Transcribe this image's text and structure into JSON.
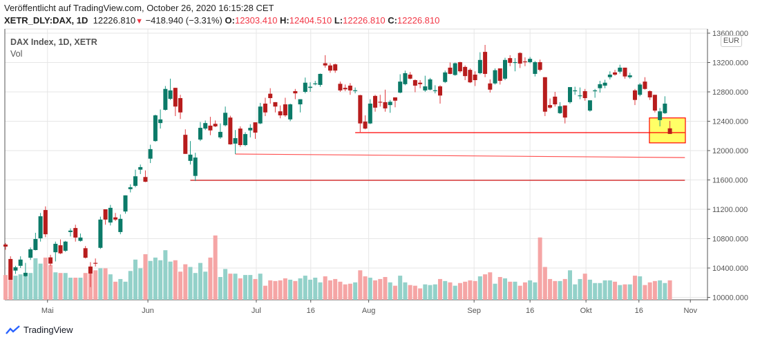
{
  "header": {
    "published": "Veröffentlicht auf TradingView.com, October 26, 2020 16:15:28 CET",
    "symbol": "XETR_DLY:DAX, 1D",
    "last": "12226.810",
    "change": "−418.940 (−3.31%)",
    "o_label": "O:",
    "o": "12303.410",
    "h_label": "H:",
    "h": "12404.510",
    "l_label": "L:",
    "l": "12226.810",
    "c_label": "C:",
    "c": "12226.810"
  },
  "legend": {
    "title": "DAX Index, 1D, XETR",
    "vol": "Vol"
  },
  "currency": "EUR",
  "footer": {
    "brand": "TradingView"
  },
  "colors": {
    "up": "#0b7a68",
    "down": "#b71c1c",
    "vol_up": "#93d1c9",
    "vol_down": "#f5a5a5",
    "line": "#ff0000",
    "box_fill": "#ffff66"
  },
  "chart_data": {
    "type": "candlestick",
    "title": "DAX Index, 1D, XETR",
    "ylim": [
      10000,
      13600
    ],
    "yticks": [
      "13600.000",
      "13200.000",
      "12800.000",
      "12400.000",
      "12000.000",
      "11600.000",
      "11200.000",
      "10800.000",
      "10400.000",
      "10000.000"
    ],
    "ytick_values": [
      13600,
      13200,
      12800,
      12400,
      12000,
      11600,
      11200,
      10800,
      10400,
      10000
    ],
    "xticks": [
      {
        "label": "Mai",
        "bar": 8.4
      },
      {
        "label": "Jun",
        "bar": 28.5
      },
      {
        "label": "Jul",
        "bar": 50.2
      },
      {
        "label": "16",
        "bar": 61.1
      },
      {
        "label": "Aug",
        "bar": 72.7
      },
      {
        "label": "Sep",
        "bar": 93.8
      },
      {
        "label": "16",
        "bar": 105
      },
      {
        "label": "Okt",
        "bar": 116.2
      },
      {
        "label": "16",
        "bar": 126.8
      },
      {
        "label": "Nov",
        "bar": 137.1
      }
    ],
    "volume_units": "relative",
    "bars_ohlcv": [
      [
        10720,
        10740,
        10650,
        10692,
        37
      ],
      [
        10523,
        10560,
        10240,
        10240,
        45
      ],
      [
        10365,
        10430,
        10320,
        10410,
        36
      ],
      [
        10430,
        10560,
        10400,
        10515,
        38
      ],
      [
        10290,
        10470,
        10280,
        10335,
        40
      ],
      [
        10540,
        10680,
        10510,
        10655,
        40
      ],
      [
        10645,
        10880,
        10640,
        10795,
        62
      ],
      [
        10805,
        11150,
        10760,
        11105,
        54
      ],
      [
        11190,
        11240,
        10820,
        10860,
        63
      ],
      [
        10545,
        10580,
        10430,
        10460,
        52
      ],
      [
        10615,
        10760,
        10490,
        10730,
        41
      ],
      [
        10710,
        10790,
        10590,
        10600,
        40
      ],
      [
        10635,
        10770,
        10620,
        10760,
        40
      ],
      [
        10890,
        10940,
        10830,
        10910,
        33
      ],
      [
        10945,
        10990,
        10760,
        10815,
        33
      ],
      [
        10770,
        10870,
        10760,
        10815,
        33
      ],
      [
        10670,
        10700,
        10530,
        10540,
        40
      ],
      [
        10420,
        10480,
        10140,
        10325,
        47
      ],
      [
        10470,
        10530,
        10420,
        10465,
        44
      ],
      [
        10675,
        11100,
        10660,
        11060,
        47
      ],
      [
        11200,
        11200,
        10990,
        11060,
        47
      ],
      [
        11020,
        11260,
        10980,
        11220,
        38
      ],
      [
        11090,
        11150,
        11040,
        11060,
        27
      ],
      [
        10890,
        11130,
        10860,
        11070,
        31
      ],
      [
        11170,
        11390,
        11140,
        11390,
        27
      ],
      [
        11475,
        11540,
        11430,
        11500,
        43
      ],
      [
        11520,
        11740,
        11500,
        11650,
        60
      ],
      [
        11740,
        11810,
        11680,
        11775,
        47
      ],
      [
        11640,
        11730,
        11570,
        11575,
        68
      ],
      [
        11890,
        12080,
        11830,
        12020,
        58
      ],
      [
        12130,
        12490,
        12120,
        12480,
        63
      ],
      [
        12375,
        12560,
        12300,
        12425,
        59
      ],
      [
        12555,
        12880,
        12545,
        12840,
        74
      ],
      [
        12705,
        12980,
        12690,
        12820,
        57
      ],
      [
        12855,
        12855,
        12470,
        12600,
        59
      ],
      [
        12715,
        12760,
        12430,
        12520,
        42
      ],
      [
        12215,
        12290,
        11955,
        11955,
        53
      ],
      [
        11860,
        12130,
        11810,
        11945,
        49
      ],
      [
        11655,
        11970,
        11585,
        11905,
        40
      ],
      [
        12150,
        12390,
        12130,
        12310,
        55
      ],
      [
        12300,
        12410,
        12280,
        12375,
        42
      ],
      [
        12340,
        12460,
        12210,
        12275,
        63
      ],
      [
        12365,
        12410,
        12320,
        12330,
        96
      ],
      [
        12180,
        12370,
        12160,
        12255,
        34
      ],
      [
        12345,
        12600,
        12330,
        12515,
        46
      ],
      [
        12450,
        12475,
        12080,
        12085,
        39
      ],
      [
        12095,
        12280,
        11953,
        12170,
        39
      ],
      [
        12300,
        12330,
        12050,
        12075,
        32
      ],
      [
        12075,
        12250,
        12060,
        12225,
        37
      ],
      [
        12275,
        12360,
        12180,
        12310,
        37
      ],
      [
        12385,
        12385,
        12160,
        12245,
        31
      ],
      [
        12370,
        12650,
        12360,
        12600,
        39
      ],
      [
        12640,
        12720,
        12470,
        12520,
        21
      ],
      [
        12775,
        12850,
        12640,
        12715,
        29
      ],
      [
        12660,
        12660,
        12520,
        12600,
        28
      ],
      [
        12535,
        12615,
        12440,
        12480,
        29
      ],
      [
        12630,
        12720,
        12460,
        12480,
        32
      ],
      [
        12425,
        12640,
        12400,
        12630,
        30
      ],
      [
        12810,
        12840,
        12700,
        12780,
        28
      ],
      [
        12630,
        12700,
        12520,
        12700,
        32
      ],
      [
        12800,
        12995,
        12780,
        12925,
        36
      ],
      [
        12855,
        12930,
        12800,
        12870,
        30
      ],
      [
        12910,
        12950,
        12890,
        12915,
        33
      ],
      [
        12895,
        13050,
        12870,
        13045,
        26
      ],
      [
        13190,
        13300,
        13130,
        13160,
        35
      ],
      [
        13160,
        13190,
        13060,
        13090,
        29
      ],
      [
        13175,
        13185,
        13060,
        13090,
        31
      ],
      [
        12910,
        12940,
        12800,
        12820,
        27
      ],
      [
        12855,
        12900,
        12810,
        12835,
        23
      ],
      [
        12885,
        12920,
        12760,
        12820,
        24
      ],
      [
        12820,
        12860,
        12780,
        12822,
        26
      ],
      [
        12755,
        12760,
        12240,
        12370,
        44
      ],
      [
        12395,
        12480,
        12290,
        12300,
        35
      ],
      [
        12370,
        12700,
        12360,
        12640,
        33
      ],
      [
        12745,
        12760,
        12530,
        12585,
        29
      ],
      [
        12665,
        12760,
        12600,
        12660,
        31
      ],
      [
        12660,
        12830,
        12530,
        12575,
        34
      ],
      [
        12620,
        12690,
        12515,
        12665,
        26
      ],
      [
        12725,
        12725,
        12590,
        12680,
        21
      ],
      [
        12790,
        13040,
        12780,
        12940,
        36
      ],
      [
        12905,
        13090,
        12890,
        13055,
        26
      ],
      [
        13035,
        13070,
        12970,
        12980,
        22
      ],
      [
        12960,
        12970,
        12795,
        12885,
        21
      ],
      [
        12925,
        12960,
        12850,
        12905,
        17
      ],
      [
        12820,
        13020,
        12800,
        12875,
        23
      ],
      [
        12830,
        12990,
        12820,
        12970,
        22
      ],
      [
        12818,
        12890,
        12780,
        12822,
        23
      ],
      [
        12875,
        12890,
        12640,
        12750,
        31
      ],
      [
        12935,
        13090,
        12920,
        13065,
        28
      ],
      [
        13130,
        13200,
        13040,
        13045,
        26
      ],
      [
        13030,
        13200,
        13020,
        13190,
        21
      ],
      [
        13205,
        13210,
        13060,
        13080,
        25
      ],
      [
        13140,
        13160,
        12960,
        13015,
        27
      ],
      [
        13100,
        13120,
        12920,
        12930,
        29
      ],
      [
        13035,
        13080,
        12880,
        12960,
        28
      ],
      [
        13055,
        13340,
        13040,
        13235,
        35
      ],
      [
        13345,
        13440,
        13000,
        13045,
        38
      ],
      [
        12915,
        12970,
        12790,
        12830,
        41
      ],
      [
        12915,
        13120,
        12900,
        13095,
        24
      ],
      [
        13120,
        13120,
        12900,
        12950,
        34
      ],
      [
        12980,
        13265,
        12960,
        13235,
        32
      ],
      [
        13260,
        13300,
        13150,
        13195,
        27
      ],
      [
        13200,
        13260,
        13080,
        13205,
        27
      ],
      [
        13330,
        13340,
        13125,
        13185,
        21
      ],
      [
        13215,
        13270,
        13150,
        13210,
        26
      ],
      [
        13205,
        13275,
        13190,
        13250,
        29
      ],
      [
        13045,
        13220,
        13010,
        13205,
        26
      ],
      [
        13205,
        13240,
        13080,
        13100,
        93
      ],
      [
        13000,
        13000,
        12470,
        12530,
        49
      ],
      [
        12620,
        12710,
        12570,
        12585,
        31
      ],
      [
        12735,
        12800,
        12600,
        12630,
        28
      ],
      [
        12510,
        12660,
        12500,
        12605,
        28
      ],
      [
        12615,
        12615,
        12370,
        12450,
        31
      ],
      [
        12660,
        12865,
        12640,
        12865,
        44
      ],
      [
        12810,
        12870,
        12760,
        12820,
        23
      ],
      [
        12748,
        12860,
        12700,
        12752,
        31
      ],
      [
        12810,
        12840,
        12680,
        12715,
        39
      ],
      [
        12545,
        12685,
        12530,
        12685,
        30
      ],
      [
        12810,
        12840,
        12720,
        12820,
        25
      ],
      [
        12850,
        12950,
        12790,
        12905,
        25
      ],
      [
        12885,
        12965,
        12850,
        12925,
        29
      ],
      [
        13000,
        13080,
        12970,
        13035,
        29
      ],
      [
        13065,
        13100,
        13020,
        13035,
        27
      ],
      [
        13075,
        13170,
        13050,
        13130,
        22
      ],
      [
        13130,
        13130,
        12980,
        13010,
        23
      ],
      [
        13000,
        13060,
        12980,
        13025,
        23
      ],
      [
        12820,
        12840,
        12620,
        12690,
        36
      ],
      [
        12760,
        12920,
        12740,
        12900,
        35
      ],
      [
        12940,
        13000,
        12830,
        12840,
        22
      ],
      [
        12810,
        12820,
        12690,
        12725,
        26
      ],
      [
        12760,
        12760,
        12520,
        12545,
        28
      ],
      [
        12415,
        12580,
        12330,
        12535,
        29
      ],
      [
        12510,
        12740,
        12500,
        12640,
        25
      ],
      [
        12303.41,
        12404.51,
        12226.81,
        12226.81,
        29
      ]
    ],
    "annotations": {
      "lines": [
        {
          "from_bar": 70,
          "from_price": 12245,
          "to_bar": 136,
          "to_price": 12245,
          "color": "#ff0000"
        },
        {
          "from_bar": 46,
          "from_price": 11953,
          "to_bar": 136,
          "to_price": 11905,
          "color": "#ff5050"
        },
        {
          "from_bar": 37,
          "from_price": 11595,
          "to_bar": 136,
          "to_price": 11595,
          "color": "#d01010"
        }
      ],
      "box": {
        "from_bar": 128.9,
        "to_bar": 136.1,
        "top_price": 12445,
        "bottom_price": 12105
      }
    }
  }
}
